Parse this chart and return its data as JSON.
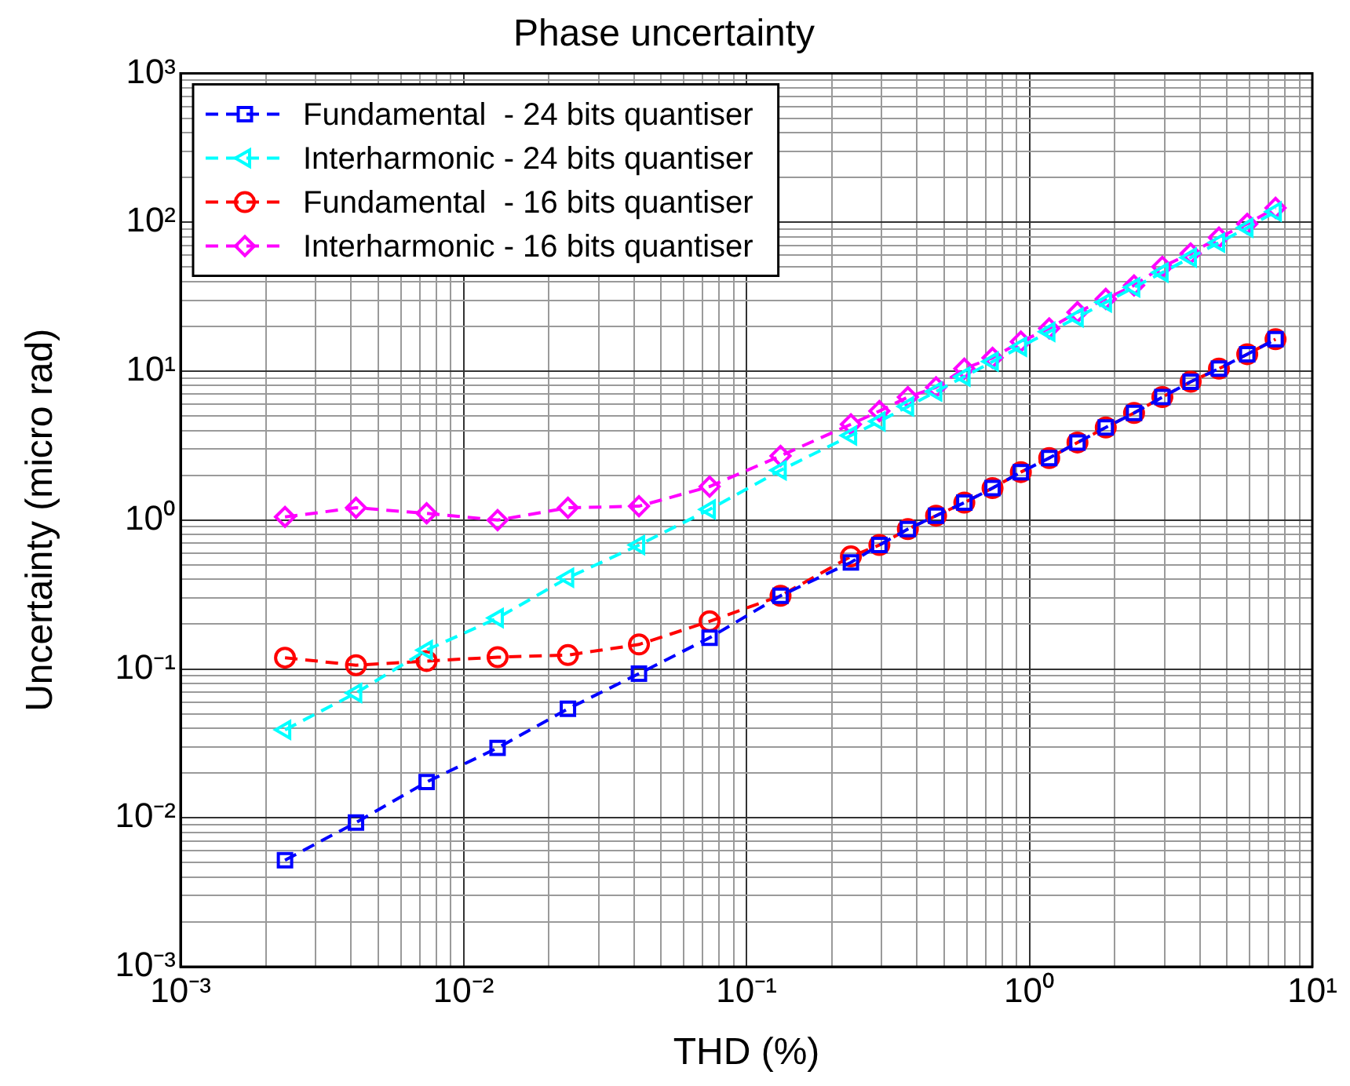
{
  "chart_data": {
    "type": "line",
    "title": "Phase uncertainty",
    "xlabel": "THD (%)",
    "ylabel": "Uncertainty (micro rad)",
    "log": "xy",
    "grid": true,
    "legend": "top left",
    "line_style": "dashed",
    "x": [
      0.00234,
      0.00417,
      0.00741,
      0.0132,
      0.0234,
      0.0417,
      0.0741,
      0.132,
      0.234,
      0.295,
      0.372,
      0.468,
      0.589,
      0.741,
      0.933,
      1.175,
      1.479,
      1.862,
      2.344,
      2.951,
      3.715,
      4.677,
      5.888,
      7.413
    ],
    "series": [
      {
        "name": "Fundamental  - 24 bits quantiser",
        "color": "#0000ff",
        "marker": "square",
        "values": [
          0.0052,
          0.0093,
          0.0174,
          0.0295,
          0.054,
          0.093,
          0.162,
          0.31,
          0.52,
          0.68,
          0.87,
          1.07,
          1.31,
          1.64,
          2.1,
          2.61,
          3.32,
          4.19,
          5.24,
          6.7,
          8.5,
          10.4,
          13,
          16.4
        ]
      },
      {
        "name": "Interharmonic - 24 bits quantiser",
        "color": "#00ffff",
        "marker": "triangle",
        "values": [
          0.039,
          0.069,
          0.134,
          0.22,
          0.41,
          0.68,
          1.18,
          2.16,
          3.7,
          4.6,
          5.8,
          7.3,
          9.2,
          11.6,
          14.6,
          18.4,
          23,
          29,
          36.6,
          46,
          58,
          73,
          92,
          118
        ]
      },
      {
        "name": "Fundamental  - 16 bits quantiser",
        "color": "#ff0000",
        "marker": "circle",
        "values": [
          0.119,
          0.106,
          0.113,
          0.12,
          0.124,
          0.146,
          0.209,
          0.31,
          0.57,
          0.68,
          0.87,
          1.07,
          1.31,
          1.64,
          2.1,
          2.61,
          3.32,
          4.19,
          5.24,
          6.7,
          8.5,
          10.4,
          13,
          16.4
        ]
      },
      {
        "name": "Interharmonic - 16 bits quantiser",
        "color": "#ff00ff",
        "marker": "diamond",
        "values": [
          1.05,
          1.21,
          1.11,
          1.0,
          1.21,
          1.24,
          1.68,
          2.7,
          4.4,
          5.4,
          6.7,
          7.8,
          10.4,
          12.3,
          15.8,
          19.4,
          24.9,
          30.6,
          37.7,
          50.3,
          61.8,
          79,
          97.7,
          125
        ]
      }
    ],
    "xlim": [
      0.001,
      10
    ],
    "xticks": [
      {
        "value": 0.001,
        "label": "10⁻³"
      },
      {
        "value": 0.002,
        "label": null
      },
      {
        "value": 0.003,
        "label": null
      },
      {
        "value": 0.004,
        "label": null
      },
      {
        "value": 0.005,
        "label": null
      },
      {
        "value": 0.006,
        "label": null
      },
      {
        "value": 0.007,
        "label": null
      },
      {
        "value": 0.008,
        "label": null
      },
      {
        "value": 0.009,
        "label": null
      },
      {
        "value": 0.01,
        "label": "10⁻²"
      },
      {
        "value": 0.02,
        "label": null
      },
      {
        "value": 0.03,
        "label": null
      },
      {
        "value": 0.04,
        "label": null
      },
      {
        "value": 0.05,
        "label": null
      },
      {
        "value": 0.06,
        "label": null
      },
      {
        "value": 0.07,
        "label": null
      },
      {
        "value": 0.08,
        "label": null
      },
      {
        "value": 0.09,
        "label": null
      },
      {
        "value": 0.1,
        "label": "10⁻¹"
      },
      {
        "value": 0.2,
        "label": null
      },
      {
        "value": 0.3,
        "label": null
      },
      {
        "value": 0.4,
        "label": null
      },
      {
        "value": 0.5,
        "label": null
      },
      {
        "value": 0.6,
        "label": null
      },
      {
        "value": 0.7,
        "label": null
      },
      {
        "value": 0.8,
        "label": null
      },
      {
        "value": 0.9,
        "label": null
      },
      {
        "value": 1,
        "label": "10⁰"
      },
      {
        "value": 2,
        "label": null
      },
      {
        "value": 3,
        "label": null
      },
      {
        "value": 4,
        "label": null
      },
      {
        "value": 5,
        "label": null
      },
      {
        "value": 6,
        "label": null
      },
      {
        "value": 7,
        "label": null
      },
      {
        "value": 8,
        "label": null
      },
      {
        "value": 9,
        "label": null
      },
      {
        "value": 10,
        "label": "10¹"
      }
    ],
    "ylim": [
      0.001,
      1000
    ],
    "yticks": [
      {
        "value": 0.001,
        "label": "10⁻³"
      },
      {
        "value": 0.002,
        "label": null
      },
      {
        "value": 0.003,
        "label": null
      },
      {
        "value": 0.004,
        "label": null
      },
      {
        "value": 0.005,
        "label": null
      },
      {
        "value": 0.006,
        "label": null
      },
      {
        "value": 0.007,
        "label": null
      },
      {
        "value": 0.008,
        "label": null
      },
      {
        "value": 0.009,
        "label": null
      },
      {
        "value": 0.01,
        "label": "10⁻²"
      },
      {
        "value": 0.02,
        "label": null
      },
      {
        "value": 0.03,
        "label": null
      },
      {
        "value": 0.04,
        "label": null
      },
      {
        "value": 0.05,
        "label": null
      },
      {
        "value": 0.06,
        "label": null
      },
      {
        "value": 0.07,
        "label": null
      },
      {
        "value": 0.08,
        "label": null
      },
      {
        "value": 0.09,
        "label": null
      },
      {
        "value": 0.1,
        "label": "10⁻¹"
      },
      {
        "value": 0.2,
        "label": null
      },
      {
        "value": 0.3,
        "label": null
      },
      {
        "value": 0.4,
        "label": null
      },
      {
        "value": 0.5,
        "label": null
      },
      {
        "value": 0.6,
        "label": null
      },
      {
        "value": 0.7,
        "label": null
      },
      {
        "value": 0.8,
        "label": null
      },
      {
        "value": 0.9,
        "label": null
      },
      {
        "value": 1,
        "label": "10⁰"
      },
      {
        "value": 2,
        "label": null
      },
      {
        "value": 3,
        "label": null
      },
      {
        "value": 4,
        "label": null
      },
      {
        "value": 5,
        "label": null
      },
      {
        "value": 6,
        "label": null
      },
      {
        "value": 7,
        "label": null
      },
      {
        "value": 8,
        "label": null
      },
      {
        "value": 9,
        "label": null
      },
      {
        "value": 10,
        "label": "10¹"
      },
      {
        "value": 20,
        "label": null
      },
      {
        "value": 30,
        "label": null
      },
      {
        "value": 40,
        "label": null
      },
      {
        "value": 50,
        "label": null
      },
      {
        "value": 60,
        "label": null
      },
      {
        "value": 70,
        "label": null
      },
      {
        "value": 80,
        "label": null
      },
      {
        "value": 90,
        "label": null
      },
      {
        "value": 100,
        "label": "10²"
      },
      {
        "value": 200,
        "label": null
      },
      {
        "value": 300,
        "label": null
      },
      {
        "value": 400,
        "label": null
      },
      {
        "value": 500,
        "label": null
      },
      {
        "value": 600,
        "label": null
      },
      {
        "value": 700,
        "label": null
      },
      {
        "value": 800,
        "label": null
      },
      {
        "value": 900,
        "label": null
      },
      {
        "value": 1000,
        "label": "10³"
      }
    ]
  }
}
